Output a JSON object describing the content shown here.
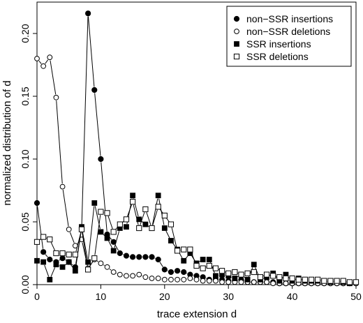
{
  "chart_data": {
    "type": "line",
    "title": "",
    "xlabel": "trace extension d",
    "ylabel": "normalized distribution of d",
    "xlim": [
      0,
      50
    ],
    "ylim": [
      0,
      0.225
    ],
    "xticks": [
      0,
      10,
      20,
      30,
      40,
      50
    ],
    "yticks": [
      0.0,
      0.05,
      0.1,
      0.15,
      0.2
    ],
    "ytick_labels": [
      "0.00",
      "0.05",
      "0.10",
      "0.15",
      "0.20"
    ],
    "legend_position": "top-right",
    "series": [
      {
        "name": "non−SSR insertions",
        "marker": "filled-circle",
        "x": [
          0,
          1,
          2,
          3,
          4,
          5,
          6,
          7,
          8,
          9,
          10,
          11,
          12,
          13,
          14,
          15,
          16,
          17,
          18,
          19,
          20,
          21,
          22,
          23,
          24,
          25,
          26,
          27,
          28,
          29,
          30,
          31,
          32,
          33,
          34,
          35,
          36,
          37,
          38,
          39,
          40,
          41,
          42,
          43,
          44,
          45,
          46,
          47,
          48,
          49,
          50
        ],
        "values": [
          0.065,
          0.026,
          0.02,
          0.018,
          0.021,
          0.018,
          0.014,
          0.045,
          0.216,
          0.155,
          0.1,
          0.04,
          0.034,
          0.025,
          0.023,
          0.022,
          0.022,
          0.022,
          0.022,
          0.02,
          0.012,
          0.01,
          0.011,
          0.01,
          0.008,
          0.007,
          0.006,
          0.004,
          0.004,
          0.004,
          0.003,
          0.003,
          0.004,
          0.002,
          0.002,
          0.002,
          0.002,
          0.002,
          0.001,
          0.001,
          0.001,
          0.001,
          0.001,
          0.001,
          0.001,
          0.001,
          0.001,
          0.001,
          0.001,
          0.001,
          0.001
        ]
      },
      {
        "name": "non−SSR deletions",
        "marker": "open-circle",
        "x": [
          0,
          1,
          2,
          3,
          4,
          5,
          6,
          7,
          8,
          9,
          10,
          11,
          12,
          13,
          14,
          15,
          16,
          17,
          18,
          19,
          20,
          21,
          22,
          23,
          24,
          25,
          26,
          27,
          28,
          29,
          30,
          31,
          32,
          33,
          34,
          35,
          36,
          37,
          38,
          39,
          40,
          41,
          42,
          43,
          44,
          45,
          46,
          47,
          48,
          49,
          50
        ],
        "values": [
          0.18,
          0.174,
          0.181,
          0.149,
          0.078,
          0.044,
          0.031,
          0.036,
          0.013,
          0.02,
          0.017,
          0.014,
          0.01,
          0.008,
          0.007,
          0.007,
          0.008,
          0.006,
          0.005,
          0.005,
          0.004,
          0.004,
          0.004,
          0.004,
          0.005,
          0.004,
          0.003,
          0.003,
          0.003,
          0.002,
          0.002,
          0.002,
          0.002,
          0.002,
          0.002,
          0.002,
          0.002,
          0.001,
          0.001,
          0.001,
          0.001,
          0.001,
          0.001,
          0.001,
          0.001,
          0.001,
          0.001,
          0.001,
          0.001,
          0.001,
          0.001
        ]
      },
      {
        "name": "SSR insertions",
        "marker": "filled-square",
        "x": [
          0,
          1,
          2,
          3,
          4,
          5,
          6,
          7,
          8,
          9,
          10,
          11,
          12,
          13,
          14,
          15,
          16,
          17,
          18,
          19,
          20,
          21,
          22,
          23,
          24,
          25,
          26,
          27,
          28,
          29,
          30,
          31,
          32,
          33,
          34,
          35,
          36,
          37,
          38,
          39,
          40,
          41,
          42,
          43,
          44,
          45,
          46,
          47,
          48,
          49,
          50
        ],
        "values": [
          0.019,
          0.018,
          0.004,
          0.016,
          0.014,
          0.018,
          0.011,
          0.046,
          0.018,
          0.065,
          0.042,
          0.037,
          0.027,
          0.045,
          0.046,
          0.071,
          0.052,
          0.048,
          0.045,
          0.071,
          0.045,
          0.035,
          0.028,
          0.019,
          0.025,
          0.017,
          0.02,
          0.02,
          0.007,
          0.008,
          0.007,
          0.005,
          0.008,
          0.004,
          0.016,
          0.004,
          0.006,
          0.009,
          0.003,
          0.008,
          0.003,
          0.005,
          0.003,
          0.003,
          0.003,
          0.003,
          0.002,
          0.003,
          0.002,
          0.001,
          0.002
        ]
      },
      {
        "name": "SSR deletions",
        "marker": "open-square",
        "x": [
          0,
          1,
          2,
          3,
          4,
          5,
          6,
          7,
          8,
          9,
          10,
          11,
          12,
          13,
          14,
          15,
          16,
          17,
          18,
          19,
          20,
          21,
          22,
          23,
          24,
          25,
          26,
          27,
          28,
          29,
          30,
          31,
          32,
          33,
          34,
          35,
          36,
          37,
          38,
          39,
          40,
          41,
          42,
          43,
          44,
          45,
          46,
          47,
          48,
          49,
          50
        ],
        "values": [
          0.034,
          0.038,
          0.036,
          0.025,
          0.025,
          0.024,
          0.024,
          0.044,
          0.012,
          0.021,
          0.058,
          0.057,
          0.042,
          0.048,
          0.052,
          0.066,
          0.045,
          0.06,
          0.045,
          0.062,
          0.055,
          0.048,
          0.027,
          0.028,
          0.028,
          0.015,
          0.013,
          0.015,
          0.013,
          0.011,
          0.009,
          0.01,
          0.008,
          0.009,
          0.01,
          0.006,
          0.008,
          0.007,
          0.006,
          0.005,
          0.005,
          0.004,
          0.004,
          0.004,
          0.004,
          0.003,
          0.003,
          0.003,
          0.003,
          0.002,
          0.002
        ]
      }
    ]
  }
}
